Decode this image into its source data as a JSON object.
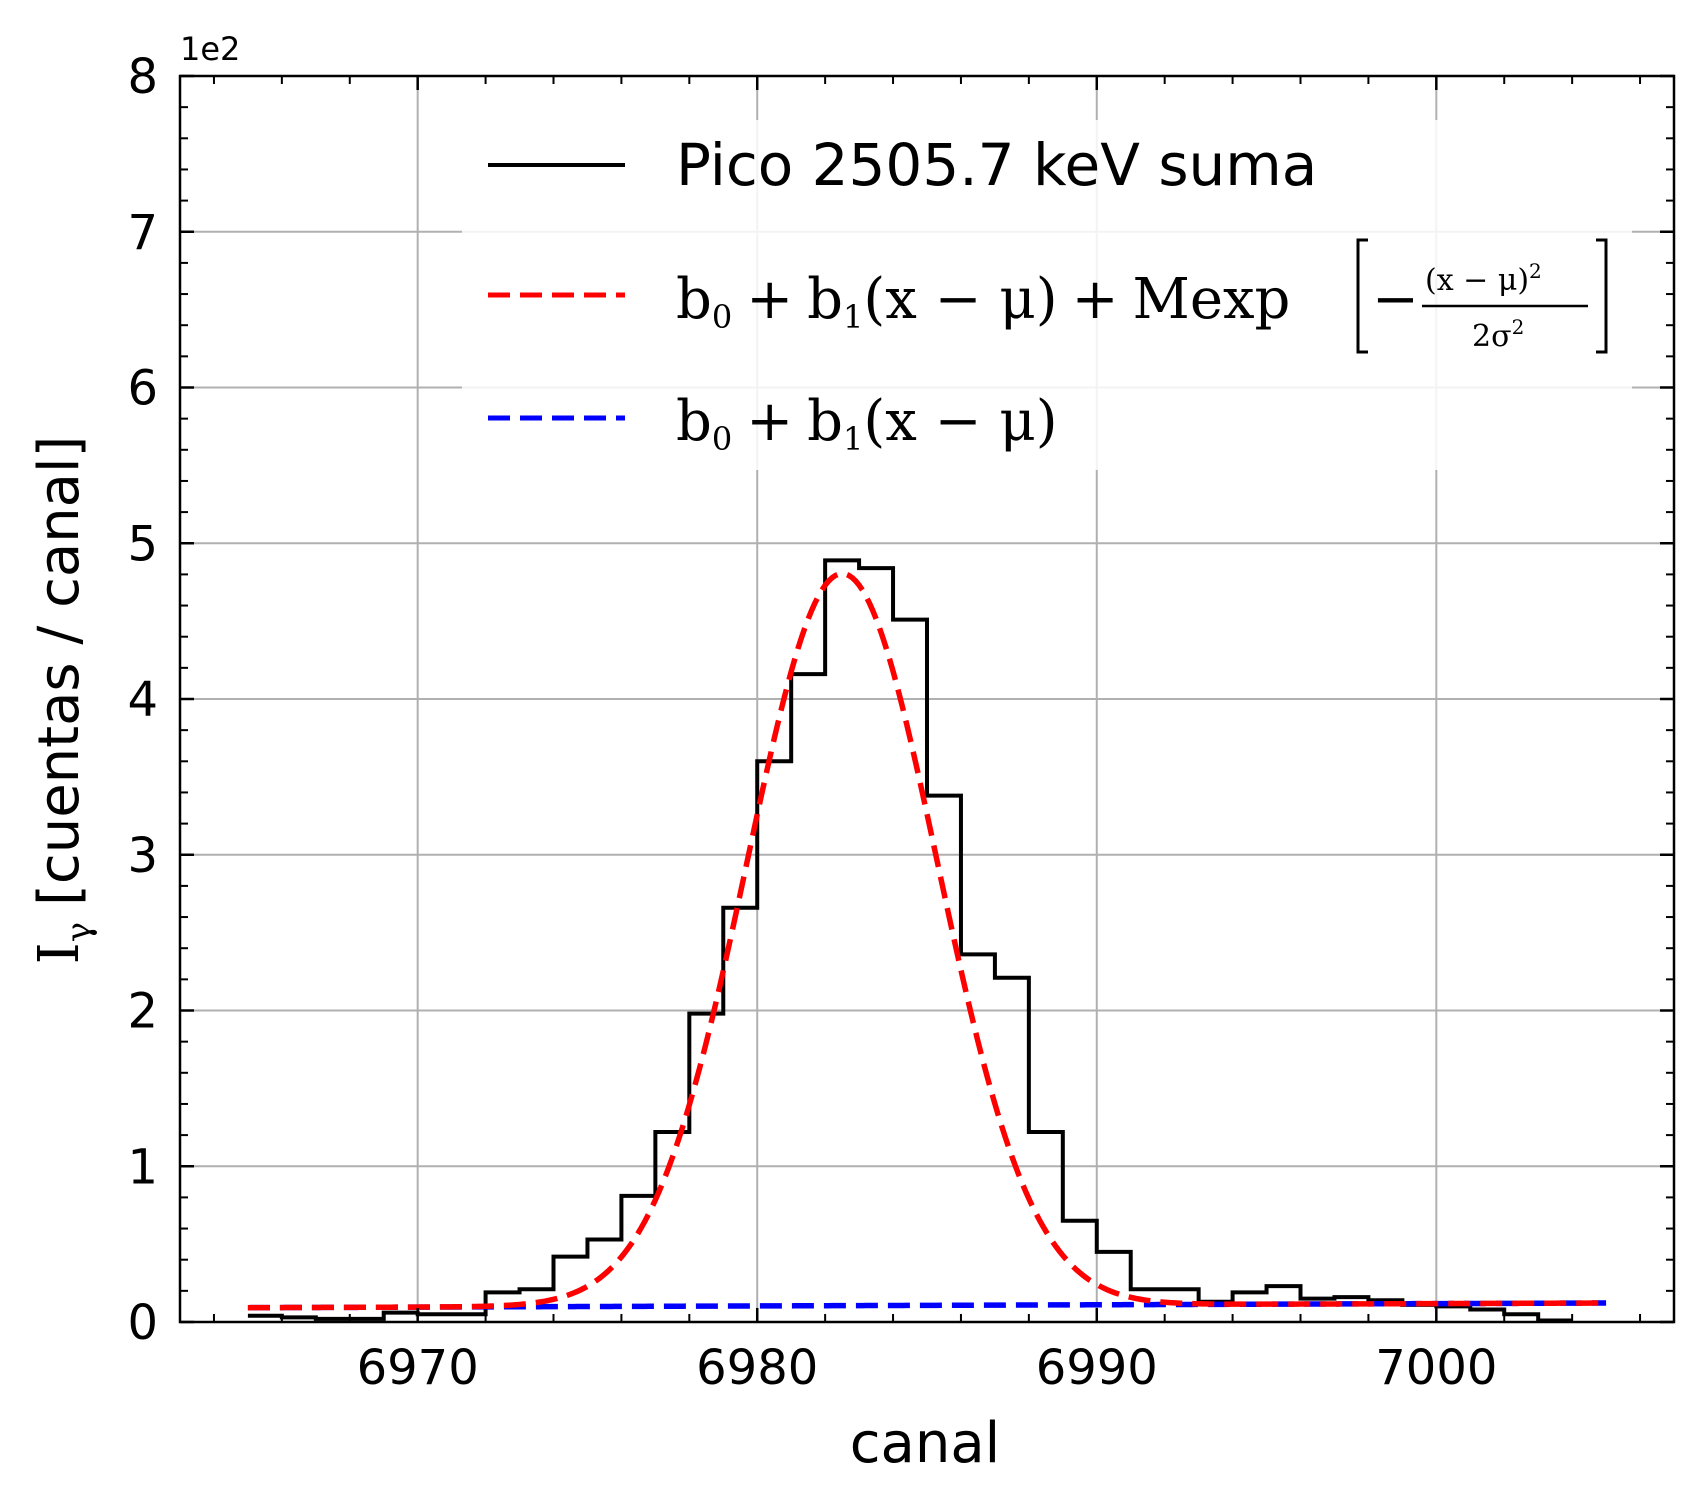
{
  "chart_data": {
    "type": "line",
    "xlabel": "canal",
    "ylabel": "[cuentas / canal]",
    "ylabel_symbol": "I",
    "ylabel_sub": "γ",
    "y_offset_text": "1e2",
    "xlim": [
      6963,
      7007
    ],
    "ylim": [
      0,
      8
    ],
    "x_ticks": [
      6970,
      6980,
      6990,
      7000
    ],
    "x_tick_labels": [
      "6970",
      "6980",
      "6990",
      "7000"
    ],
    "y_ticks": [
      0,
      1,
      2,
      3,
      4,
      5,
      6,
      7,
      8
    ],
    "y_tick_labels": [
      "0",
      "1",
      "2",
      "3",
      "4",
      "5",
      "6",
      "7",
      "8"
    ],
    "grid": true,
    "legend_position": "top-center",
    "series": [
      {
        "name": "Pico 2505.7 keV suma",
        "style": "step",
        "color": "#000000",
        "edges": [
          6965,
          6966,
          6967,
          6968,
          6969,
          6970,
          6971,
          6972,
          6973,
          6974,
          6975,
          6976,
          6977,
          6978,
          6979,
          6980,
          6981,
          6982,
          6983,
          6984,
          6985,
          6986,
          6987,
          6988,
          6989,
          6990,
          6991,
          6992,
          6993,
          6994,
          6995,
          6996,
          6997,
          6998,
          6999,
          7000,
          7001,
          7002,
          7003,
          7004
        ],
        "values": [
          0.04,
          0.03,
          0.02,
          0.02,
          0.06,
          0.05,
          0.05,
          0.19,
          0.21,
          0.42,
          0.53,
          0.81,
          1.22,
          1.98,
          2.66,
          3.6,
          4.16,
          4.89,
          4.84,
          4.51,
          3.38,
          2.36,
          2.21,
          1.22,
          0.65,
          0.45,
          0.21,
          0.21,
          0.13,
          0.19,
          0.23,
          0.15,
          0.16,
          0.14,
          0.11,
          0.1,
          0.08,
          0.05,
          0.01
        ]
      },
      {
        "name": "b₀ + b₁(x − μ) + Mexp[−(x − μ)²/2σ²]",
        "style": "dashed",
        "color": "#ff0000",
        "fit": {
          "b0": 0.105,
          "b1": 0.00075,
          "M": 4.7,
          "mu": 6982.5,
          "sigma": 2.8,
          "x_range": [
            6965,
            7005
          ]
        }
      },
      {
        "name": "b₀ + b₁(x − μ)",
        "style": "dashed",
        "color": "#0000ff",
        "fit": {
          "b0": 0.105,
          "b1": 0.00075,
          "mu": 6982.5,
          "x_range": [
            6965,
            7005
          ]
        }
      }
    ],
    "legend": {
      "entries": [
        {
          "label": "Pico 2505.7 keV suma",
          "color": "#000000",
          "style": "solid"
        },
        {
          "label_parts": {
            "a": "b",
            "a_sub": "0",
            "plus": "+",
            "b": "b",
            "b_sub": "1",
            "paren": "(x − μ)",
            "plus2": "+",
            "mexp": "Mexp",
            "num": "(x − μ)",
            "num_sup": "2",
            "den": "2σ",
            "den_sup": "2",
            "minus": "−"
          },
          "color": "#ff0000",
          "style": "dashed"
        },
        {
          "label_parts": {
            "a": "b",
            "a_sub": "0",
            "plus": "+",
            "b": "b",
            "b_sub": "1",
            "paren": "(x − μ)"
          },
          "color": "#0000ff",
          "style": "dashed"
        }
      ]
    }
  }
}
